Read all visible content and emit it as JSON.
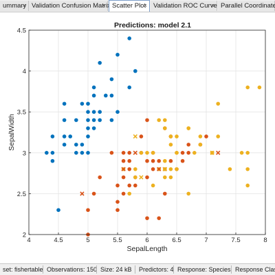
{
  "tabs": [
    {
      "label": "ummary",
      "close": "×",
      "active": false
    },
    {
      "label": "Validation Confusion Matrix",
      "close": "×",
      "active": false
    },
    {
      "label": "Scatter Plot",
      "close": "×",
      "active": true
    },
    {
      "label": "Validation ROC Curve",
      "close": "×",
      "active": false
    },
    {
      "label": "Parallel Coordinates P",
      "close": "",
      "active": false
    }
  ],
  "status": {
    "dataset": "set: fishertable",
    "observations": "Observations: 150",
    "size": "Size: 24 kB",
    "predictors": "Predictors: 4",
    "response": "Response: Species",
    "classes": "Response Classe"
  },
  "chart_data": {
    "type": "scatter",
    "title": "Predictions: model 2.1",
    "xlabel": "SepalLength",
    "ylabel": "SepalWidth",
    "xlim": [
      4,
      8
    ],
    "ylim": [
      2,
      4.5
    ],
    "xticks": [
      "4",
      "4.5",
      "5",
      "5.5",
      "6",
      "6.5",
      "7",
      "7.5",
      "8"
    ],
    "yticks": [
      "2",
      "2.5",
      "3",
      "3.5",
      "4",
      "4.5"
    ],
    "grid": true,
    "colors": {
      "setosa": "#0072bd",
      "versicolor": "#d95319",
      "virginica": "#edb120"
    },
    "series": [
      {
        "class": "setosa",
        "marker": "dot",
        "color": "#0072bd",
        "points": [
          [
            4.3,
            3.0
          ],
          [
            4.4,
            3.2
          ],
          [
            4.4,
            3.0
          ],
          [
            4.4,
            2.9
          ],
          [
            4.5,
            2.3
          ],
          [
            4.6,
            3.6
          ],
          [
            4.6,
            3.4
          ],
          [
            4.6,
            3.2
          ],
          [
            4.6,
            3.1
          ],
          [
            4.7,
            3.2
          ],
          [
            4.8,
            3.4
          ],
          [
            4.8,
            3.1
          ],
          [
            4.8,
            3.0
          ],
          [
            4.9,
            3.6
          ],
          [
            4.9,
            3.1
          ],
          [
            4.9,
            3.0
          ],
          [
            5.0,
            3.6
          ],
          [
            5.0,
            3.5
          ],
          [
            5.0,
            3.4
          ],
          [
            5.0,
            3.3
          ],
          [
            5.0,
            3.2
          ],
          [
            5.0,
            3.0
          ],
          [
            5.1,
            3.8
          ],
          [
            5.1,
            3.7
          ],
          [
            5.1,
            3.5
          ],
          [
            5.1,
            3.4
          ],
          [
            5.1,
            3.3
          ],
          [
            5.2,
            4.1
          ],
          [
            5.2,
            3.5
          ],
          [
            5.2,
            3.4
          ],
          [
            5.3,
            3.7
          ],
          [
            5.4,
            3.9
          ],
          [
            5.4,
            3.7
          ],
          [
            5.4,
            3.4
          ],
          [
            5.5,
            4.2
          ],
          [
            5.5,
            3.5
          ],
          [
            5.7,
            4.4
          ],
          [
            5.7,
            3.8
          ],
          [
            5.8,
            4.0
          ]
        ]
      },
      {
        "class": "versicolor",
        "marker": "dot",
        "color": "#d95319",
        "points": [
          [
            5.0,
            2.0
          ],
          [
            5.0,
            2.3
          ],
          [
            5.1,
            2.5
          ],
          [
            5.2,
            2.7
          ],
          [
            5.5,
            2.3
          ],
          [
            5.5,
            2.4
          ],
          [
            5.5,
            2.6
          ],
          [
            5.6,
            2.5
          ],
          [
            5.6,
            2.7
          ],
          [
            5.6,
            2.9
          ],
          [
            5.6,
            3.0
          ],
          [
            5.7,
            2.6
          ],
          [
            5.7,
            2.8
          ],
          [
            5.7,
            2.9
          ],
          [
            5.8,
            2.6
          ],
          [
            5.8,
            2.7
          ],
          [
            5.9,
            3.0
          ],
          [
            6.0,
            2.2
          ],
          [
            6.0,
            2.7
          ],
          [
            6.0,
            2.9
          ],
          [
            6.0,
            3.4
          ],
          [
            6.1,
            2.8
          ],
          [
            6.1,
            2.9
          ],
          [
            6.1,
            3.0
          ],
          [
            6.2,
            2.2
          ],
          [
            6.2,
            2.9
          ],
          [
            6.3,
            2.5
          ],
          [
            6.3,
            3.3
          ],
          [
            6.4,
            2.9
          ],
          [
            6.4,
            3.2
          ],
          [
            6.5,
            2.8
          ],
          [
            6.6,
            2.9
          ],
          [
            6.6,
            3.0
          ],
          [
            6.7,
            3.0
          ],
          [
            6.7,
            3.1
          ],
          [
            6.9,
            3.1
          ],
          [
            7.0,
            3.2
          ],
          [
            5.4,
            3.0
          ],
          [
            5.7,
            3.0
          ],
          [
            5.9,
            3.2
          ]
        ]
      },
      {
        "class": "virginica",
        "marker": "dot",
        "color": "#edb120",
        "points": [
          [
            5.6,
            2.8
          ],
          [
            5.7,
            2.5
          ],
          [
            5.8,
            2.7
          ],
          [
            5.8,
            2.8
          ],
          [
            6.0,
            3.0
          ],
          [
            6.1,
            2.6
          ],
          [
            6.2,
            2.8
          ],
          [
            6.3,
            2.7
          ],
          [
            6.3,
            2.8
          ],
          [
            6.3,
            2.9
          ],
          [
            6.4,
            2.7
          ],
          [
            6.4,
            2.8
          ],
          [
            6.4,
            3.1
          ],
          [
            6.5,
            3.0
          ],
          [
            6.5,
            3.2
          ],
          [
            6.7,
            2.5
          ],
          [
            6.7,
            3.3
          ],
          [
            6.8,
            3.0
          ],
          [
            6.9,
            3.2
          ],
          [
            7.1,
            3.0
          ],
          [
            7.2,
            3.2
          ],
          [
            7.2,
            3.6
          ],
          [
            7.4,
            2.8
          ],
          [
            7.6,
            3.0
          ],
          [
            7.7,
            2.6
          ],
          [
            7.7,
            2.8
          ],
          [
            7.7,
            3.8
          ],
          [
            7.9,
            3.8
          ],
          [
            6.3,
            3.4
          ],
          [
            6.4,
            3.2
          ],
          [
            6.5,
            3.0
          ],
          [
            6.2,
            3.4
          ],
          [
            6.1,
            3.0
          ],
          [
            6.7,
            3.3
          ],
          [
            6.9,
            3.1
          ],
          [
            6.5,
            2.8
          ],
          [
            5.9,
            3.0
          ],
          [
            6.3,
            3.3
          ],
          [
            7.7,
            3.0
          ]
        ]
      },
      {
        "class": "versicolor",
        "marker": "cross",
        "color": "#d95319",
        "points": [
          [
            4.9,
            2.5
          ],
          [
            5.6,
            2.8
          ],
          [
            6.3,
            2.8
          ],
          [
            6.2,
            2.8
          ],
          [
            7.2,
            3.0
          ],
          [
            5.8,
            3.0
          ]
        ]
      },
      {
        "class": "virginica",
        "marker": "cross",
        "color": "#edb120",
        "points": [
          [
            5.8,
            3.2
          ],
          [
            5.9,
            2.7
          ],
          [
            6.3,
            2.8
          ],
          [
            7.1,
            3.0
          ]
        ]
      }
    ]
  }
}
